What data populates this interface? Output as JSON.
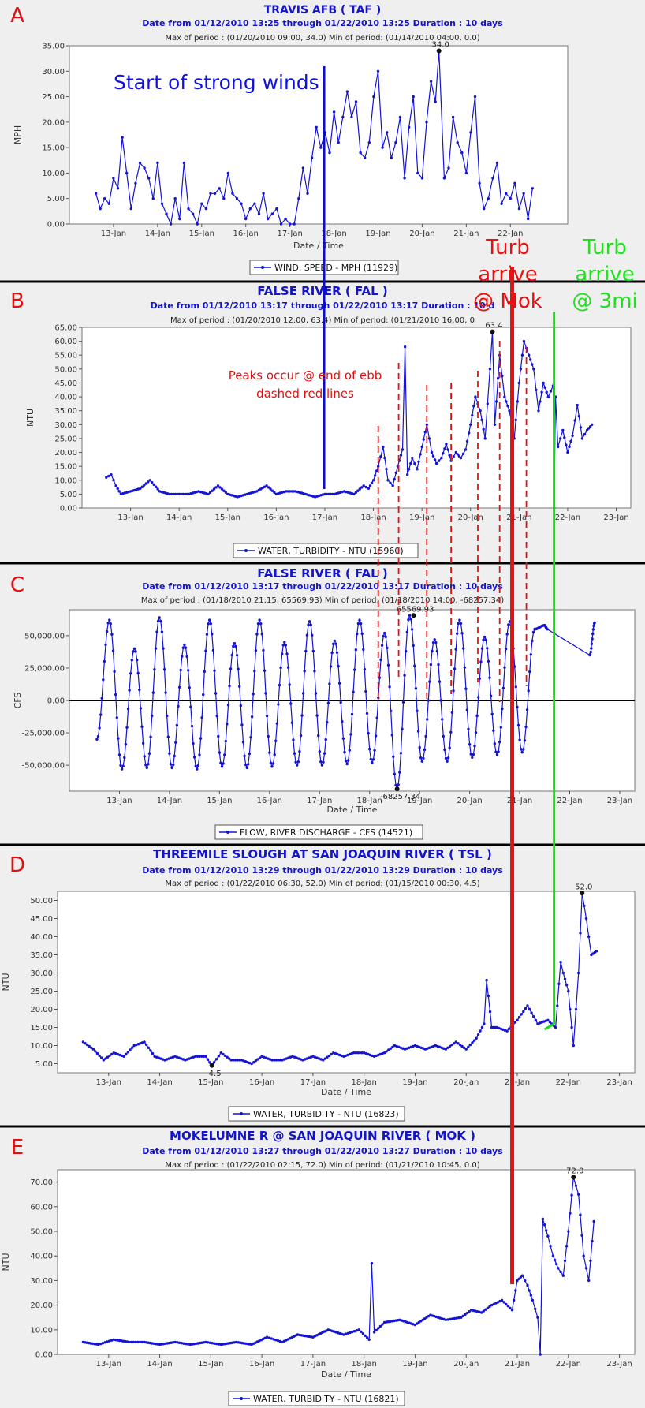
{
  "chart_data": [
    {
      "panel": "A",
      "type": "line",
      "title": "TRAVIS AFB ( TAF )",
      "subtitle": "Date from 01/12/2010 13:25 through 01/22/2010 13:25 Duration : 10 days",
      "minmax": "Max of period : (01/20/2010 09:00, 34.0)   Min of period: (01/14/2010 04:00,  0.0)",
      "ylabel": "MPH",
      "xlabel": "Date / Time",
      "ylim": [
        0,
        35
      ],
      "yticks": [
        0,
        5,
        10,
        15,
        20,
        25,
        30,
        35
      ],
      "ytick_labels": [
        "0.00",
        "5.00",
        "10.00",
        "15.00",
        "20.00",
        "25.00",
        "30.00",
        "35.00"
      ],
      "xlim": [
        12.0,
        23.3
      ],
      "xticks": [
        13,
        14,
        15,
        16,
        17,
        18,
        19,
        20,
        21,
        22
      ],
      "xtick_labels": [
        "13-Jan",
        "14-Jan",
        "15-Jan",
        "16-Jan",
        "17-Jan",
        "18-Jan",
        "19-Jan",
        "20-Jan",
        "21-Jan",
        "22-Jan"
      ],
      "legend": "WIND, SPEED - MPH (11929)",
      "peak": {
        "x": 20.38,
        "y": 34.0,
        "label": "34.0"
      },
      "series": [
        {
          "name": "WIND, SPEED - MPH (11929)",
          "style": "points",
          "x": [
            12.6,
            12.7,
            12.8,
            12.9,
            13.0,
            13.1,
            13.2,
            13.3,
            13.4,
            13.5,
            13.6,
            13.7,
            13.8,
            13.9,
            14.0,
            14.1,
            14.2,
            14.3,
            14.4,
            14.5,
            14.6,
            14.7,
            14.8,
            14.9,
            15.0,
            15.1,
            15.2,
            15.3,
            15.4,
            15.5,
            15.6,
            15.7,
            15.8,
            15.9,
            16.0,
            16.1,
            16.2,
            16.3,
            16.4,
            16.5,
            16.6,
            16.7,
            16.8,
            16.9,
            17.0,
            17.1,
            17.2,
            17.3,
            17.4,
            17.5,
            17.6,
            17.7,
            17.8,
            17.9,
            18.0,
            18.1,
            18.2,
            18.3,
            18.4,
            18.5,
            18.6,
            18.7,
            18.8,
            18.9,
            19.0,
            19.1,
            19.2,
            19.3,
            19.4,
            19.5,
            19.6,
            19.7,
            19.8,
            19.9,
            20.0,
            20.1,
            20.2,
            20.3,
            20.38,
            20.5,
            20.6,
            20.7,
            20.8,
            20.9,
            21.0,
            21.1,
            21.2,
            21.3,
            21.4,
            21.5,
            21.6,
            21.7,
            21.8,
            21.9,
            22.0,
            22.1,
            22.2,
            22.3,
            22.4,
            22.5
          ],
          "y": [
            6,
            3,
            5,
            4,
            9,
            7,
            17,
            10,
            3,
            8,
            12,
            11,
            9,
            5,
            12,
            4,
            2,
            0,
            5,
            1,
            12,
            3,
            2,
            0,
            4,
            3,
            6,
            6,
            7,
            5,
            10,
            6,
            5,
            4,
            1,
            3,
            4,
            2,
            6,
            1,
            2,
            3,
            0,
            1,
            0,
            0,
            5,
            11,
            6,
            13,
            19,
            15,
            18,
            14,
            22,
            16,
            21,
            26,
            21,
            24,
            14,
            13,
            16,
            25,
            30,
            15,
            18,
            13,
            16,
            21,
            9,
            19,
            25,
            10,
            9,
            20,
            28,
            24,
            34,
            9,
            11,
            21,
            16,
            14,
            10,
            18,
            25,
            8,
            3,
            5,
            9,
            12,
            4,
            6,
            5,
            8,
            3,
            6,
            1,
            7
          ]
        }
      ]
    },
    {
      "panel": "B",
      "type": "line",
      "title": "FALSE RIVER ( FAL )",
      "subtitle": "Date from 01/12/2010 13:17 through 01/22/2010 13:17 Duration : 10 d",
      "minmax": "Max of period : (01/20/2010 12:00, 63.4)   Min of period: (01/21/2010 16:00, 0",
      "ylabel": "NTU",
      "xlabel": "",
      "ylim": [
        0,
        65
      ],
      "yticks": [
        0,
        5,
        10,
        15,
        20,
        25,
        30,
        35,
        40,
        45,
        50,
        55,
        60,
        65
      ],
      "ytick_labels": [
        "0.00",
        "5.00",
        "10.00",
        "15.00",
        "20.00",
        "25.00",
        "30.00",
        "35.00",
        "40.00",
        "45.00",
        "50.00",
        "55.00",
        "60.00",
        "65.00"
      ],
      "xlim": [
        12.0,
        23.3
      ],
      "xticks": [
        13,
        14,
        15,
        16,
        17,
        18,
        19,
        20,
        21,
        22,
        23
      ],
      "xtick_labels": [
        "13-Jan",
        "14-Jan",
        "15-Jan",
        "16-Jan",
        "17-Jan",
        "18-Jan",
        "19-Jan",
        "20-Jan",
        "21-Jan",
        "22-Jan",
        "23-Jan"
      ],
      "legend": "WATER, TURBIDITY -   NTU (15960)",
      "peak": {
        "x": 20.45,
        "y": 63.4,
        "label": "63.4"
      },
      "series": [
        {
          "name": "WATER, TURBIDITY -   NTU (15960)",
          "style": "dense",
          "x": [
            12.5,
            12.6,
            12.7,
            12.8,
            13.0,
            13.2,
            13.4,
            13.6,
            13.8,
            14.0,
            14.2,
            14.4,
            14.6,
            14.8,
            15.0,
            15.2,
            15.4,
            15.6,
            15.8,
            16.0,
            16.2,
            16.4,
            16.6,
            16.8,
            17.0,
            17.2,
            17.4,
            17.6,
            17.8,
            17.9,
            18.0,
            18.1,
            18.2,
            18.3,
            18.4,
            18.5,
            18.6,
            18.65,
            18.7,
            18.8,
            18.9,
            19.0,
            19.1,
            19.2,
            19.3,
            19.4,
            19.5,
            19.6,
            19.7,
            19.8,
            19.9,
            20.0,
            20.1,
            20.2,
            20.3,
            20.4,
            20.45,
            20.5,
            20.6,
            20.7,
            20.8,
            20.9,
            21.0,
            21.1,
            21.2,
            21.3,
            21.4,
            21.5,
            21.6,
            21.7,
            21.72,
            21.75,
            21.8,
            21.9,
            22.0,
            22.1,
            22.2,
            22.3,
            22.4,
            22.5
          ],
          "y": [
            11,
            12,
            8,
            5,
            6,
            7,
            10,
            6,
            5,
            5,
            5,
            6,
            5,
            8,
            5,
            4,
            5,
            6,
            8,
            5,
            6,
            6,
            5,
            4,
            5,
            5,
            6,
            5,
            8,
            7,
            10,
            15,
            22,
            10,
            8,
            15,
            21,
            58,
            12,
            18,
            14,
            22,
            30,
            20,
            16,
            18,
            23,
            17,
            20,
            18,
            21,
            30,
            40,
            35,
            25,
            50,
            63.4,
            30,
            55,
            40,
            35,
            25,
            45,
            60,
            55,
            50,
            35,
            45,
            40,
            44,
            0,
            40,
            22,
            28,
            20,
            26,
            37,
            25,
            28,
            30
          ]
        }
      ]
    },
    {
      "panel": "C",
      "type": "line",
      "title": "FALSE RIVER ( FAL )",
      "subtitle": "Date from 01/12/2010 13:17 through 01/22/2010 13:17 Duration : 10 days",
      "minmax": "Max of period : (01/18/2010 21:15, 65569.93)   Min of period: (01/18/2010 14:00,  -68257.34)",
      "ylabel": "CFS",
      "xlabel": "Date / Time",
      "ylim": [
        -70000,
        70000
      ],
      "yticks": [
        -50000,
        -25000,
        0,
        25000,
        50000
      ],
      "ytick_labels": [
        "-50,000.00",
        "-25,000.00",
        "0.00",
        "25,000.00",
        "50,000.00"
      ],
      "xlim": [
        12.0,
        23.3
      ],
      "xticks": [
        13,
        14,
        15,
        16,
        17,
        18,
        19,
        20,
        21,
        22,
        23
      ],
      "xtick_labels": [
        "13-Jan",
        "14-Jan",
        "15-Jan",
        "16-Jan",
        "17-Jan",
        "18-Jan",
        "19-Jan",
        "20-Jan",
        "21-Jan",
        "22-Jan",
        "23-Jan"
      ],
      "legend": "FLOW, RIVER DISCHARGE - CFS (14521)",
      "peak": {
        "x": 18.88,
        "y": 65569.93,
        "label": "65569.93"
      },
      "trough": {
        "x": 18.55,
        "y": -68257.34,
        "label": "-68257.34"
      },
      "series": [
        {
          "name": "FLOW, RIVER DISCHARGE - CFS (14521)",
          "style": "tidal",
          "x": [
            12.55,
            12.8,
            13.05,
            13.3,
            13.55,
            13.8,
            14.05,
            14.3,
            14.55,
            14.8,
            15.05,
            15.3,
            15.55,
            15.8,
            16.05,
            16.3,
            16.55,
            16.8,
            17.05,
            17.3,
            17.55,
            17.8,
            18.05,
            18.3,
            18.55,
            18.8,
            19.05,
            19.3,
            19.55,
            19.8,
            20.05,
            20.3,
            20.55,
            20.8,
            21.05,
            21.3,
            21.5,
            21.55,
            22.4,
            22.5
          ],
          "y": [
            -30000,
            62000,
            -53000,
            40000,
            -52000,
            64000,
            -52000,
            43000,
            -53000,
            62000,
            -51000,
            44000,
            -52000,
            62000,
            -51000,
            45000,
            -50000,
            61000,
            -50000,
            46000,
            -49000,
            62000,
            -48000,
            52000,
            -68257,
            65570,
            -47000,
            47000,
            -47000,
            62000,
            -44000,
            49000,
            -42000,
            61000,
            -40000,
            55000,
            58000,
            55000,
            35000,
            60000
          ]
        }
      ]
    },
    {
      "panel": "D",
      "type": "line",
      "title": "THREEMILE SLOUGH AT SAN JOAQUIN RIVER ( TSL )",
      "subtitle": "Date from 01/12/2010 13:29 through 01/22/2010 13:29 Duration : 10 days",
      "minmax": "Max of period : (01/22/2010 06:30, 52.0)   Min of period: (01/15/2010 00:30,  4.5)",
      "ylabel": "NTU",
      "xlabel": "Date / Time",
      "ylim": [
        2.5,
        52.5
      ],
      "yticks": [
        5,
        10,
        15,
        20,
        25,
        30,
        35,
        40,
        45,
        50
      ],
      "ytick_labels": [
        "5.00",
        "10.00",
        "15.00",
        "20.00",
        "25.00",
        "30.00",
        "35.00",
        "40.00",
        "45.00",
        "50.00"
      ],
      "xlim": [
        12.0,
        23.3
      ],
      "xticks": [
        13,
        14,
        15,
        16,
        17,
        18,
        19,
        20,
        21,
        22,
        23
      ],
      "xtick_labels": [
        "13-Jan",
        "14-Jan",
        "15-Jan",
        "16-Jan",
        "17-Jan",
        "18-Jan",
        "19-Jan",
        "20-Jan",
        "21-Jan",
        "22-Jan",
        "23-Jan"
      ],
      "legend": "WATER, TURBIDITY -   NTU (16823)",
      "peak": {
        "x": 22.27,
        "y": 52.0,
        "label": "52.0"
      },
      "trough": {
        "x": 15.02,
        "y": 4.5,
        "label": "4.5"
      },
      "series": [
        {
          "name": "WATER, TURBIDITY -   NTU (16823)",
          "style": "dense",
          "x": [
            12.5,
            12.7,
            12.9,
            13.1,
            13.3,
            13.5,
            13.7,
            13.9,
            14.1,
            14.3,
            14.5,
            14.7,
            14.9,
            15.02,
            15.2,
            15.4,
            15.6,
            15.8,
            16.0,
            16.2,
            16.4,
            16.6,
            16.8,
            17.0,
            17.2,
            17.4,
            17.6,
            17.8,
            18.0,
            18.2,
            18.4,
            18.6,
            18.8,
            19.0,
            19.2,
            19.4,
            19.6,
            19.8,
            20.0,
            20.2,
            20.35,
            20.4,
            20.5,
            20.6,
            20.8,
            21.0,
            21.2,
            21.4,
            21.6,
            21.75,
            21.85,
            21.9,
            22.0,
            22.1,
            22.2,
            22.27,
            22.35,
            22.45,
            22.55
          ],
          "y": [
            11,
            9,
            6,
            8,
            7,
            10,
            11,
            7,
            6,
            7,
            6,
            7,
            7,
            4.5,
            8,
            6,
            6,
            5,
            7,
            6,
            6,
            7,
            6,
            7,
            6,
            8,
            7,
            8,
            8,
            7,
            8,
            10,
            9,
            10,
            9,
            10,
            9,
            11,
            9,
            12,
            16,
            28,
            15,
            15,
            14,
            17,
            21,
            16,
            17,
            15,
            33,
            30,
            25,
            10,
            30,
            52,
            45,
            35,
            36
          ]
        }
      ]
    },
    {
      "panel": "E",
      "type": "line",
      "title": "MOKELUMNE R @ SAN JOAQUIN RIVER ( MOK )",
      "subtitle": "Date from 01/12/2010 13:27 through 01/22/2010 13:27 Duration : 10 days",
      "minmax": "Max of period : (01/22/2010 02:15, 72.0)   Min of period: (01/21/2010 10:45,  0.0)",
      "ylabel": "NTU",
      "xlabel": "Date / Time",
      "ylim": [
        0,
        75
      ],
      "yticks": [
        0,
        10,
        20,
        30,
        40,
        50,
        60,
        70
      ],
      "ytick_labels": [
        "0.00",
        "10.00",
        "20.00",
        "30.00",
        "40.00",
        "50.00",
        "60.00",
        "70.00"
      ],
      "xlim": [
        12.0,
        23.3
      ],
      "xticks": [
        13,
        14,
        15,
        16,
        17,
        18,
        19,
        20,
        21,
        22,
        23
      ],
      "xtick_labels": [
        "13-Jan",
        "14-Jan",
        "15-Jan",
        "16-Jan",
        "17-Jan",
        "18-Jan",
        "19-Jan",
        "20-Jan",
        "21-Jan",
        "22-Jan",
        "23-Jan"
      ],
      "legend": "WATER, TURBIDITY -   NTU (16821)",
      "peak": {
        "x": 22.1,
        "y": 72.0,
        "label": "72.0"
      },
      "series": [
        {
          "name": "WATER, TURBIDITY -   NTU (16821)",
          "style": "dense",
          "x": [
            12.5,
            12.8,
            13.1,
            13.4,
            13.7,
            14.0,
            14.3,
            14.6,
            14.9,
            15.2,
            15.5,
            15.8,
            16.1,
            16.4,
            16.7,
            17.0,
            17.3,
            17.6,
            17.9,
            18.1,
            18.15,
            18.2,
            18.4,
            18.7,
            19.0,
            19.3,
            19.6,
            19.9,
            20.1,
            20.3,
            20.5,
            20.7,
            20.9,
            21.0,
            21.1,
            21.2,
            21.3,
            21.4,
            21.45,
            21.5,
            21.6,
            21.7,
            21.8,
            21.9,
            22.0,
            22.1,
            22.2,
            22.3,
            22.4,
            22.5
          ],
          "y": [
            5,
            4,
            6,
            5,
            5,
            4,
            5,
            4,
            5,
            4,
            5,
            4,
            7,
            5,
            8,
            7,
            10,
            8,
            10,
            6,
            37,
            9,
            13,
            14,
            12,
            16,
            14,
            15,
            18,
            17,
            20,
            22,
            18,
            30,
            32,
            28,
            22,
            15,
            0,
            55,
            48,
            40,
            35,
            32,
            50,
            72,
            65,
            40,
            30,
            54
          ]
        }
      ]
    }
  ],
  "panel_labels": [
    "A",
    "B",
    "C",
    "D",
    "E"
  ],
  "annotations": {
    "strong_winds": "Start of strong winds",
    "turb_mok": [
      "Turb",
      "arrive",
      "@ Mok"
    ],
    "turb_3mi": [
      "Turb",
      "arrive",
      "@ 3mi"
    ],
    "peaks_note": [
      "Peaks occur @ end of ebb",
      "dashed red lines"
    ]
  },
  "colors": {
    "series": "#1414d2",
    "title": "#1414c8",
    "panel_label": "#e01010",
    "red_line": "#e81010",
    "green_line": "#10e010",
    "blue_line": "#0a0ad0",
    "panel_bg": "#efefef",
    "plot_bg": "#ffffff"
  },
  "marker_lines": {
    "wind_start_x": 17.78,
    "mok_arrival_x": 20.9,
    "tsl_arrival_x": 21.72,
    "ebb_peak_x": [
      18.1,
      18.52,
      19.1,
      19.6,
      20.15,
      20.6,
      21.15
    ]
  }
}
